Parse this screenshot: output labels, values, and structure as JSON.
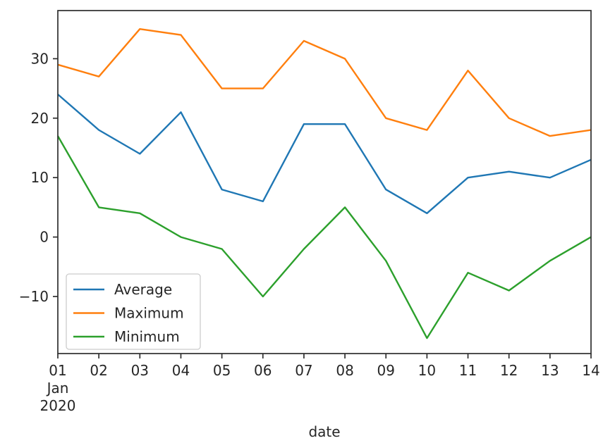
{
  "chart_data": {
    "type": "line",
    "title": "",
    "xlabel": "date",
    "ylabel": "",
    "x": [
      "01",
      "02",
      "03",
      "04",
      "05",
      "06",
      "07",
      "08",
      "09",
      "10",
      "11",
      "12",
      "13",
      "14"
    ],
    "x_start_sublabels": [
      "Jan",
      "2020"
    ],
    "series": [
      {
        "name": "Average",
        "color": "#1f77b4",
        "values": [
          24,
          18,
          14,
          21,
          8,
          6,
          19,
          19,
          8,
          4,
          10,
          11,
          10,
          13
        ]
      },
      {
        "name": "Maximum",
        "color": "#ff7f0e",
        "values": [
          29,
          27,
          35,
          34,
          25,
          25,
          33,
          30,
          20,
          18,
          28,
          20,
          17,
          18
        ]
      },
      {
        "name": "Minimum",
        "color": "#2ca02c",
        "values": [
          17,
          5,
          4,
          0,
          -2,
          -10,
          -2,
          5,
          -4,
          -17,
          -6,
          -9,
          -4,
          0
        ]
      }
    ],
    "y_ticks": {
      "values": [
        30,
        20,
        10,
        0,
        -10
      ],
      "labels": [
        "30",
        "20",
        "10",
        "0",
        "−10"
      ]
    },
    "ylim": [
      -19.6,
      38.1
    ],
    "grid": false,
    "legend": {
      "position": "lower-left",
      "entries": [
        "Average",
        "Maximum",
        "Minimum"
      ]
    },
    "colors": {
      "spine": "#2e2e2e",
      "tick_text": "#262626",
      "legend_border": "#cccccc"
    }
  }
}
